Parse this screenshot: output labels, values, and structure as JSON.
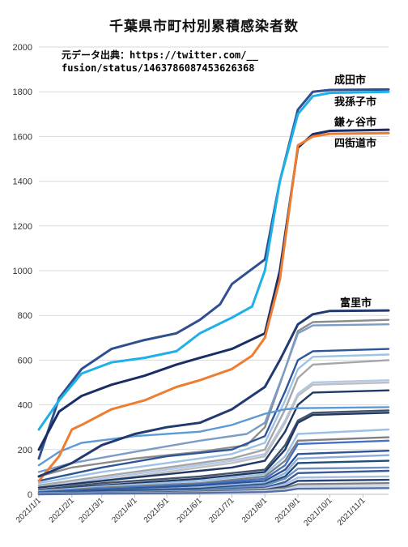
{
  "chart_data": {
    "type": "line",
    "title": "千葉県市町村別累積感染者数",
    "source_note_line1": "元データ出典：https://twitter.com/__",
    "source_note_line2": "fusion/status/1463786087453626368",
    "xlabel": "",
    "ylabel": "",
    "ylim": [
      0,
      2000
    ],
    "yticks": [
      0,
      200,
      400,
      600,
      800,
      1000,
      1200,
      1400,
      1600,
      1800,
      2000
    ],
    "xticks": [
      "2021/1/1",
      "2021/2/1",
      "2021/3/1",
      "2021/4/1",
      "2021/5/1",
      "2021/6/1",
      "2021/7/1",
      "2021/8/1",
      "2021/9/1",
      "2021/10/1",
      "2021/11/1"
    ],
    "xrange": [
      "2021/1/1",
      "2021/11/25"
    ],
    "grid": "horizontal",
    "legend": "none",
    "series": [
      {
        "name": "成田市",
        "color": "#2f4f8f",
        "x": [
          "2021/1/1",
          "2021/1/20",
          "2021/2/10",
          "2021/3/10",
          "2021/4/10",
          "2021/5/10",
          "2021/6/1",
          "2021/6/20",
          "2021/7/1",
          "2021/7/15",
          "2021/8/1",
          "2021/8/15",
          "2021/9/1",
          "2021/9/15",
          "2021/10/1",
          "2021/11/25"
        ],
        "y": [
          160,
          430,
          560,
          650,
          690,
          720,
          780,
          850,
          940,
          990,
          1050,
          1400,
          1720,
          1800,
          1808,
          1810
        ]
      },
      {
        "name": "我孫子市",
        "color": "#1fb0e8",
        "x": [
          "2021/1/1",
          "2021/1/20",
          "2021/2/10",
          "2021/3/10",
          "2021/4/10",
          "2021/5/10",
          "2021/6/1",
          "2021/7/1",
          "2021/7/20",
          "2021/8/1",
          "2021/8/15",
          "2021/9/1",
          "2021/9/15",
          "2021/10/1",
          "2021/11/25"
        ],
        "y": [
          290,
          420,
          540,
          590,
          610,
          640,
          720,
          790,
          840,
          1000,
          1400,
          1700,
          1780,
          1795,
          1800
        ]
      },
      {
        "name": "鎌ヶ谷市",
        "color": "#1a2e66",
        "x": [
          "2021/1/1",
          "2021/1/20",
          "2021/2/10",
          "2021/3/10",
          "2021/4/10",
          "2021/5/10",
          "2021/6/1",
          "2021/7/1",
          "2021/8/1",
          "2021/8/15",
          "2021/9/1",
          "2021/9/15",
          "2021/10/1",
          "2021/11/25"
        ],
        "y": [
          200,
          370,
          440,
          490,
          530,
          580,
          610,
          650,
          720,
          1000,
          1550,
          1610,
          1625,
          1630
        ]
      },
      {
        "name": "四街道市",
        "color": "#ed7d31",
        "x": [
          "2021/1/1",
          "2021/1/20",
          "2021/2/1",
          "2021/2/10",
          "2021/3/10",
          "2021/4/10",
          "2021/5/10",
          "2021/6/1",
          "2021/7/1",
          "2021/7/20",
          "2021/8/1",
          "2021/8/15",
          "2021/9/1",
          "2021/9/15",
          "2021/10/1",
          "2021/11/25"
        ],
        "y": [
          60,
          170,
          290,
          310,
          380,
          420,
          480,
          510,
          560,
          620,
          700,
          960,
          1560,
          1600,
          1612,
          1615
        ]
      },
      {
        "name": "富里市",
        "color": "#223a70",
        "x": [
          "2021/1/1",
          "2021/2/1",
          "2021/3/1",
          "2021/4/1",
          "2021/5/1",
          "2021/6/1",
          "2021/7/1",
          "2021/8/1",
          "2021/8/15",
          "2021/9/1",
          "2021/9/15",
          "2021/10/1",
          "2021/11/25"
        ],
        "y": [
          80,
          140,
          220,
          270,
          300,
          320,
          380,
          480,
          600,
          760,
          805,
          820,
          822
        ]
      },
      {
        "name": "",
        "color": "#8c8c8c",
        "x": [
          "2021/1/1",
          "2021/2/1",
          "2021/4/1",
          "2021/6/1",
          "2021/7/15",
          "2021/8/1",
          "2021/8/20",
          "2021/9/1",
          "2021/9/15",
          "2021/11/25"
        ],
        "y": [
          80,
          120,
          160,
          190,
          220,
          300,
          560,
          730,
          770,
          780
        ]
      },
      {
        "name": "",
        "color": "#7a9cc6",
        "x": [
          "2021/1/1",
          "2021/2/1",
          "2021/4/1",
          "2021/6/1",
          "2021/7/15",
          "2021/8/1",
          "2021/8/20",
          "2021/9/1",
          "2021/9/15",
          "2021/11/25"
        ],
        "y": [
          100,
          140,
          190,
          240,
          270,
          320,
          560,
          720,
          755,
          760
        ]
      },
      {
        "name": "",
        "color": "#2e5597",
        "x": [
          "2021/1/1",
          "2021/3/1",
          "2021/5/1",
          "2021/7/1",
          "2021/8/1",
          "2021/8/20",
          "2021/9/1",
          "2021/9/15",
          "2021/11/25"
        ],
        "y": [
          60,
          120,
          170,
          200,
          260,
          460,
          600,
          640,
          650
        ]
      },
      {
        "name": "",
        "color": "#9dc3e6",
        "x": [
          "2021/1/1",
          "2021/3/1",
          "2021/5/1",
          "2021/7/1",
          "2021/8/1",
          "2021/8/20",
          "2021/9/1",
          "2021/9/15",
          "2021/11/25"
        ],
        "y": [
          50,
          100,
          140,
          180,
          230,
          420,
          560,
          615,
          625
        ]
      },
      {
        "name": "",
        "color": "#a6a6a6",
        "x": [
          "2021/1/1",
          "2021/3/1",
          "2021/5/1",
          "2021/7/1",
          "2021/8/1",
          "2021/8/20",
          "2021/9/1",
          "2021/9/15",
          "2021/11/25"
        ],
        "y": [
          40,
          80,
          120,
          160,
          200,
          380,
          520,
          580,
          600
        ]
      },
      {
        "name": "",
        "color": "#b4c7e7",
        "x": [
          "2021/1/1",
          "2021/3/1",
          "2021/5/1",
          "2021/7/1",
          "2021/8/1",
          "2021/8/20",
          "2021/9/1",
          "2021/9/15",
          "2021/11/25"
        ],
        "y": [
          30,
          70,
          110,
          150,
          180,
          330,
          450,
          500,
          510
        ]
      },
      {
        "name": "",
        "color": "#bfbfbf",
        "x": [
          "2021/1/1",
          "2021/3/1",
          "2021/5/1",
          "2021/7/1",
          "2021/8/1",
          "2021/8/20",
          "2021/9/1",
          "2021/9/15",
          "2021/11/25"
        ],
        "y": [
          30,
          60,
          100,
          140,
          170,
          320,
          440,
          490,
          500
        ]
      },
      {
        "name": "",
        "color": "#203864",
        "x": [
          "2021/1/1",
          "2021/3/1",
          "2021/5/1",
          "2021/7/1",
          "2021/8/1",
          "2021/8/20",
          "2021/9/1",
          "2021/9/15",
          "2021/11/25"
        ],
        "y": [
          30,
          60,
          90,
          120,
          150,
          280,
          400,
          455,
          465
        ]
      },
      {
        "name": "",
        "color": "#5b9bd5",
        "x": [
          "2021/1/1",
          "2021/1/20",
          "2021/2/10",
          "2021/4/1",
          "2021/6/1",
          "2021/7/1",
          "2021/8/1",
          "2021/8/20",
          "2021/9/1",
          "2021/11/25"
        ],
        "y": [
          130,
          190,
          230,
          260,
          280,
          310,
          360,
          380,
          385,
          390
        ]
      },
      {
        "name": "",
        "color": "#44546a",
        "x": [
          "2021/1/1",
          "2021/3/1",
          "2021/6/1",
          "2021/8/1",
          "2021/8/20",
          "2021/9/1",
          "2021/9/15",
          "2021/11/25"
        ],
        "y": [
          20,
          50,
          80,
          110,
          220,
          330,
          365,
          375
        ]
      },
      {
        "name": "",
        "color": "#1f3864",
        "x": [
          "2021/1/1",
          "2021/3/1",
          "2021/6/1",
          "2021/8/1",
          "2021/8/20",
          "2021/9/1",
          "2021/9/15",
          "2021/11/25"
        ],
        "y": [
          15,
          40,
          70,
          100,
          200,
          320,
          355,
          365
        ]
      },
      {
        "name": "",
        "color": "#9bc2e6",
        "x": [
          "2021/1/1",
          "2021/3/1",
          "2021/6/1",
          "2021/8/1",
          "2021/8/20",
          "2021/9/1",
          "2021/11/25"
        ],
        "y": [
          15,
          35,
          60,
          90,
          170,
          270,
          290
        ]
      },
      {
        "name": "",
        "color": "#808080",
        "x": [
          "2021/1/1",
          "2021/3/1",
          "2021/6/1",
          "2021/8/1",
          "2021/8/20",
          "2021/9/1",
          "2021/11/25"
        ],
        "y": [
          10,
          30,
          50,
          80,
          150,
          240,
          255
        ]
      },
      {
        "name": "",
        "color": "#4472c4",
        "x": [
          "2021/1/1",
          "2021/3/1",
          "2021/6/1",
          "2021/8/1",
          "2021/8/20",
          "2021/9/1",
          "2021/11/25"
        ],
        "y": [
          10,
          25,
          45,
          70,
          130,
          225,
          240
        ]
      },
      {
        "name": "",
        "color": "#2f5597",
        "x": [
          "2021/1/1",
          "2021/3/1",
          "2021/6/1",
          "2021/8/1",
          "2021/8/20",
          "2021/9/1",
          "2021/11/25"
        ],
        "y": [
          8,
          20,
          40,
          60,
          110,
          180,
          195
        ]
      },
      {
        "name": "",
        "color": "#8faadc",
        "x": [
          "2021/1/1",
          "2021/3/1",
          "2021/6/1",
          "2021/8/1",
          "2021/8/20",
          "2021/9/1",
          "2021/11/25"
        ],
        "y": [
          5,
          15,
          30,
          50,
          95,
          160,
          175
        ]
      },
      {
        "name": "",
        "color": "#1f4e79",
        "x": [
          "2021/1/1",
          "2021/3/1",
          "2021/6/1",
          "2021/8/1",
          "2021/8/20",
          "2021/9/1",
          "2021/11/25"
        ],
        "y": [
          5,
          15,
          25,
          45,
          80,
          140,
          150
        ]
      },
      {
        "name": "",
        "color": "#6f8fbf",
        "x": [
          "2021/1/1",
          "2021/3/1",
          "2021/6/1",
          "2021/8/1",
          "2021/8/20",
          "2021/9/1",
          "2021/11/25"
        ],
        "y": [
          5,
          10,
          20,
          40,
          70,
          115,
          120
        ]
      },
      {
        "name": "",
        "color": "#3a5a98",
        "x": [
          "2021/1/1",
          "2021/3/1",
          "2021/6/1",
          "2021/8/1",
          "2021/8/20",
          "2021/9/1",
          "2021/11/25"
        ],
        "y": [
          2,
          10,
          18,
          30,
          55,
          95,
          105
        ]
      },
      {
        "name": "",
        "color": "#a9bfdd",
        "x": [
          "2021/1/1",
          "2021/3/1",
          "2021/6/1",
          "2021/8/1",
          "2021/8/20",
          "2021/9/1",
          "2021/11/25"
        ],
        "y": [
          3,
          8,
          15,
          25,
          45,
          75,
          80
        ]
      },
      {
        "name": "",
        "color": "#264478",
        "x": [
          "2021/1/1",
          "2021/3/1",
          "2021/6/1",
          "2021/8/1",
          "2021/8/20",
          "2021/9/1",
          "2021/11/25"
        ],
        "y": [
          2,
          6,
          12,
          20,
          35,
          60,
          65
        ]
      },
      {
        "name": "",
        "color": "#7f7f7f",
        "x": [
          "2021/1/1",
          "2021/3/1",
          "2021/6/1",
          "2021/8/1",
          "2021/8/20",
          "2021/9/1",
          "2021/11/25"
        ],
        "y": [
          1,
          5,
          10,
          18,
          28,
          45,
          50
        ]
      },
      {
        "name": "",
        "color": "#c9d6ea",
        "x": [
          "2021/1/1",
          "2021/3/1",
          "2021/6/1",
          "2021/8/1",
          "2021/8/20",
          "2021/9/1",
          "2021/11/25"
        ],
        "y": [
          1,
          4,
          8,
          14,
          22,
          35,
          38
        ]
      },
      {
        "name": "",
        "color": "#5470a8",
        "x": [
          "2021/1/1",
          "2021/3/1",
          "2021/6/1",
          "2021/8/1",
          "2021/8/20",
          "2021/9/1",
          "2021/11/25"
        ],
        "y": [
          0,
          3,
          6,
          10,
          16,
          25,
          28
        ]
      }
    ],
    "annotations": [
      {
        "text": "成田市",
        "series": "成田市"
      },
      {
        "text": "我孫子市",
        "series": "我孫子市"
      },
      {
        "text": "鎌ヶ谷市",
        "series": "鎌ヶ谷市"
      },
      {
        "text": "四街道市",
        "series": "四街道市"
      },
      {
        "text": "富里市",
        "series": "富里市"
      }
    ]
  }
}
